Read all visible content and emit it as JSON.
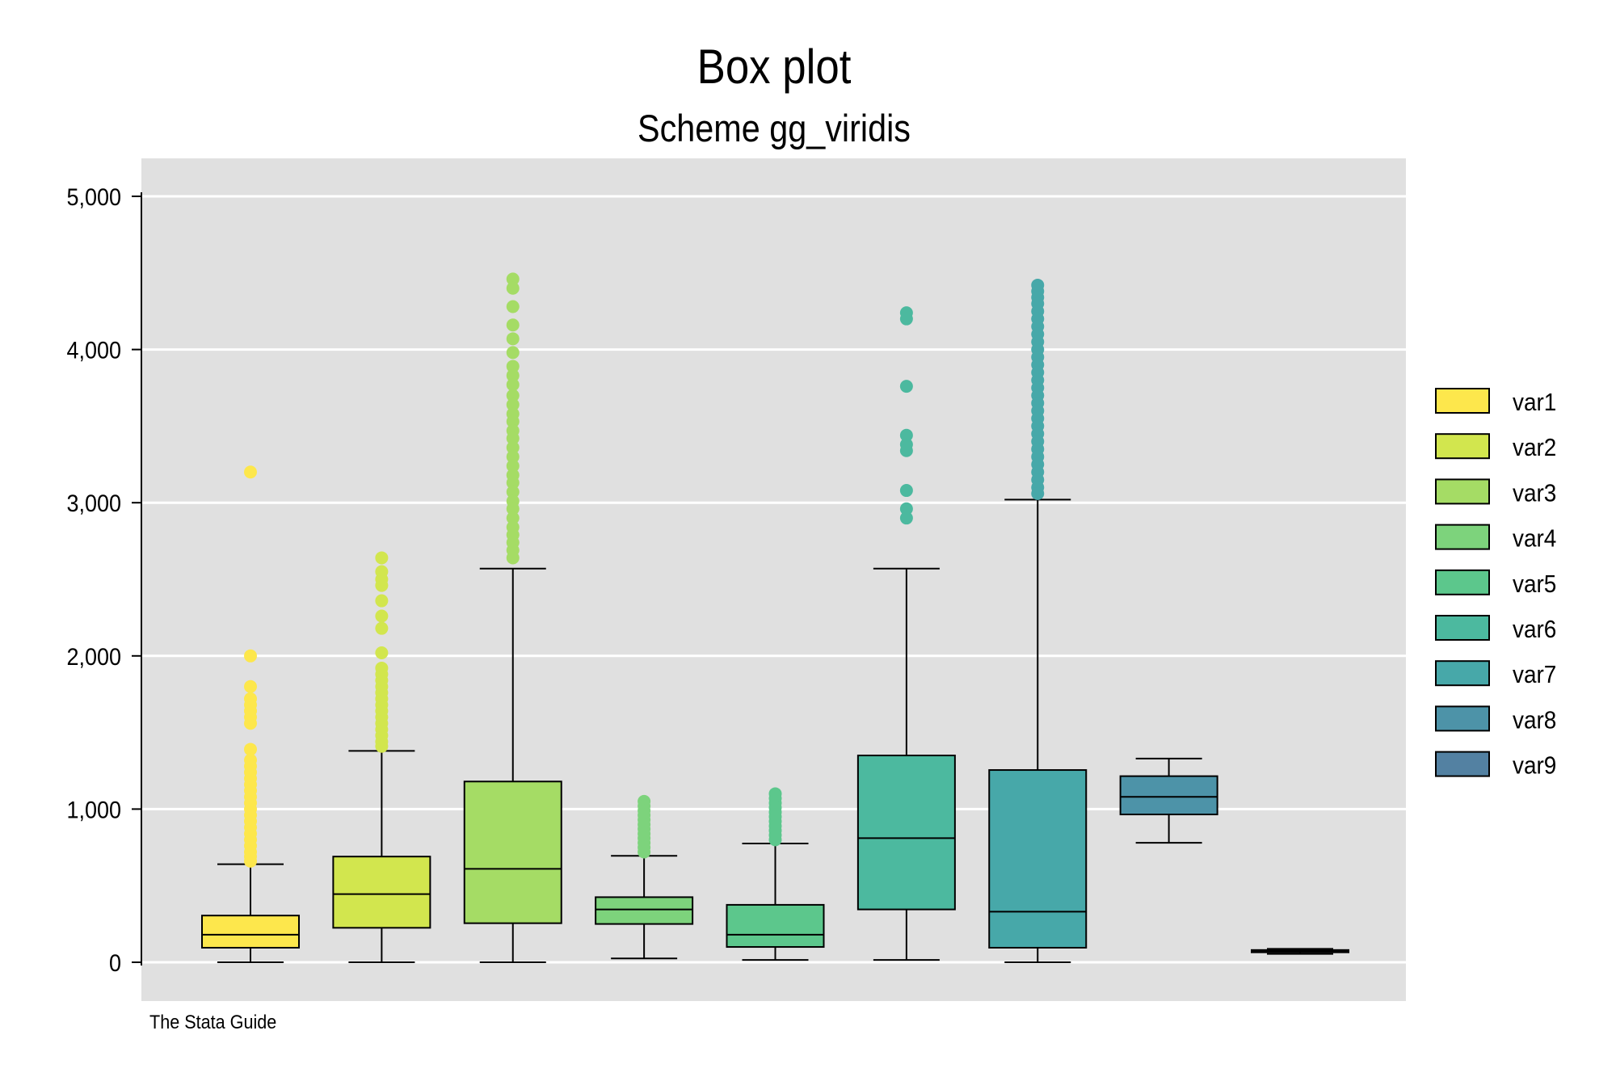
{
  "chart_data": {
    "type": "box",
    "title": "Box plot",
    "subtitle": "Scheme gg_viridis",
    "note": "The Stata Guide",
    "ylim": [
      0,
      5000
    ],
    "yticks": [
      0,
      1000,
      2000,
      3000,
      4000,
      5000
    ],
    "ytick_labels": [
      "0",
      "1,000",
      "2,000",
      "3,000",
      "4,000",
      "5,000"
    ],
    "grid": true,
    "legend_position": "right",
    "series": [
      {
        "name": "var1",
        "color": "#FDE74C",
        "whisker_low": 0,
        "q1": 95,
        "median": 180,
        "q3": 305,
        "whisker_high": 640,
        "outliers": [
          3200,
          2000,
          1800,
          1720,
          1680,
          1640,
          1600,
          1560,
          1390,
          1320,
          1280,
          1240,
          1200,
          1160,
          1120,
          1080,
          1040,
          1000,
          960,
          920,
          880,
          840,
          800,
          760,
          720,
          690,
          660
        ]
      },
      {
        "name": "var2",
        "color": "#D2E64E",
        "whisker_low": 0,
        "q1": 225,
        "median": 445,
        "q3": 690,
        "whisker_high": 1380,
        "outliers": [
          2640,
          2550,
          2500,
          2460,
          2360,
          2260,
          2180,
          2020,
          1920,
          1880,
          1840,
          1800,
          1760,
          1720,
          1680,
          1640,
          1600,
          1560,
          1520,
          1480,
          1440,
          1410
        ]
      },
      {
        "name": "var3",
        "color": "#A5DC65",
        "whisker_low": 0,
        "q1": 255,
        "median": 610,
        "q3": 1180,
        "whisker_high": 2570,
        "outliers": [
          4460,
          4400,
          4280,
          4160,
          4070,
          3980,
          3890,
          3830,
          3770,
          3700,
          3640,
          3580,
          3530,
          3470,
          3420,
          3360,
          3300,
          3240,
          3180,
          3130,
          3070,
          3010,
          2960,
          2900,
          2840,
          2790,
          2740,
          2690,
          2640
        ]
      },
      {
        "name": "var4",
        "color": "#7DD37C",
        "whisker_low": 25,
        "q1": 250,
        "median": 345,
        "q3": 425,
        "whisker_high": 695,
        "outliers": [
          1050,
          1020,
          990,
          960,
          930,
          900,
          870,
          840,
          810,
          780,
          750,
          720
        ]
      },
      {
        "name": "var5",
        "color": "#5CC78C",
        "whisker_low": 15,
        "q1": 100,
        "median": 180,
        "q3": 375,
        "whisker_high": 775,
        "outliers": [
          1100,
          1070,
          1040,
          1010,
          980,
          950,
          920,
          890,
          860,
          830,
          800
        ]
      },
      {
        "name": "var6",
        "color": "#4CB99F",
        "whisker_low": 15,
        "q1": 345,
        "median": 810,
        "q3": 1350,
        "whisker_high": 2570,
        "outliers": [
          4240,
          4200,
          3760,
          3440,
          3380,
          3340,
          3080,
          2960,
          2900
        ]
      },
      {
        "name": "var7",
        "color": "#47A8A9",
        "whisker_low": 0,
        "q1": 95,
        "median": 330,
        "q3": 1255,
        "whisker_high": 3020,
        "outliers": [
          4420,
          4380,
          4340,
          4300,
          4250,
          4200,
          4150,
          4100,
          4050,
          4000,
          3950,
          3900,
          3850,
          3800,
          3750,
          3700,
          3650,
          3600,
          3550,
          3500,
          3450,
          3400,
          3350,
          3300,
          3250,
          3200,
          3150,
          3100,
          3060
        ]
      },
      {
        "name": "var8",
        "color": "#4D93A8",
        "whisker_low": 780,
        "q1": 965,
        "median": 1080,
        "q3": 1215,
        "whisker_high": 1330,
        "outliers": []
      },
      {
        "name": "var9",
        "color": "#5381A2",
        "whisker_low": 55,
        "q1": 65,
        "median": 72,
        "q3": 80,
        "whisker_high": 88,
        "outliers": []
      }
    ]
  }
}
